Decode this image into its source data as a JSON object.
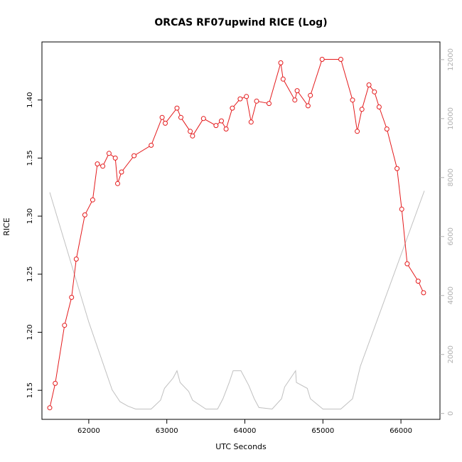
{
  "chart_data": {
    "type": "line",
    "title": "ORCAS RF07upwind RICE (Log)",
    "xlabel": "UTC Seconds",
    "ylabel": "RICE",
    "xlim": [
      61400,
      66500
    ],
    "ylim": [
      1.125,
      1.45
    ],
    "y2lim": [
      -200,
      12600
    ],
    "x_ticks": [
      62000,
      63000,
      64000,
      65000,
      66000
    ],
    "y_ticks": [
      1.15,
      1.2,
      1.25,
      1.3,
      1.35,
      1.4
    ],
    "y_tick_labels": [
      "1.15",
      "1.20",
      "1.25",
      "1.30",
      "1.35",
      "1.40"
    ],
    "y2_ticks": [
      0,
      2000,
      4000,
      6000,
      8000,
      10000,
      12000
    ],
    "grid": false,
    "series": [
      {
        "color": "#e41a1c",
        "axis": "left",
        "marker": "open-circle",
        "x": [
          61500,
          61570,
          61690,
          61780,
          61840,
          61950,
          62050,
          62110,
          62180,
          62260,
          62340,
          62370,
          62420,
          62580,
          62800,
          62940,
          62980,
          63130,
          63180,
          63300,
          63330,
          63470,
          63630,
          63700,
          63760,
          63840,
          63940,
          64020,
          64080,
          64150,
          64310,
          64460,
          64490,
          64640,
          64670,
          64810,
          64840,
          64990,
          65230,
          65380,
          65440,
          65500,
          65590,
          65660,
          65720,
          65820,
          65950,
          66010,
          66080,
          66220,
          66290
        ],
        "y": [
          1.135,
          1.156,
          1.206,
          1.23,
          1.263,
          1.301,
          1.314,
          1.345,
          1.343,
          1.354,
          1.35,
          1.328,
          1.338,
          1.352,
          1.361,
          1.385,
          1.38,
          1.393,
          1.385,
          1.373,
          1.369,
          1.384,
          1.378,
          1.382,
          1.375,
          1.393,
          1.401,
          1.403,
          1.381,
          1.399,
          1.397,
          1.432,
          1.418,
          1.4,
          1.408,
          1.395,
          1.404,
          1.435,
          1.435,
          1.4,
          1.373,
          1.392,
          1.413,
          1.407,
          1.394,
          1.375,
          1.341,
          1.306,
          1.259,
          1.244,
          1.234
        ]
      },
      {
        "color": "#c0c0c0",
        "axis": "right",
        "marker": "none",
        "x": [
          61500,
          62000,
          62300,
          62400,
          62500,
          62600,
          62800,
          62920,
          62970,
          63080,
          63130,
          63170,
          63280,
          63330,
          63500,
          63650,
          63720,
          63800,
          63850,
          63950,
          64050,
          64120,
          64180,
          64350,
          64470,
          64510,
          64650,
          64660,
          64800,
          64840,
          65000,
          65230,
          65380,
          65480,
          66300
        ],
        "y": [
          7500,
          3100,
          800,
          400,
          250,
          150,
          150,
          450,
          850,
          1200,
          1450,
          1050,
          750,
          450,
          150,
          150,
          500,
          1050,
          1450,
          1450,
          950,
          500,
          200,
          150,
          500,
          900,
          1450,
          1050,
          850,
          500,
          150,
          150,
          500,
          1600,
          7550
        ]
      }
    ]
  }
}
